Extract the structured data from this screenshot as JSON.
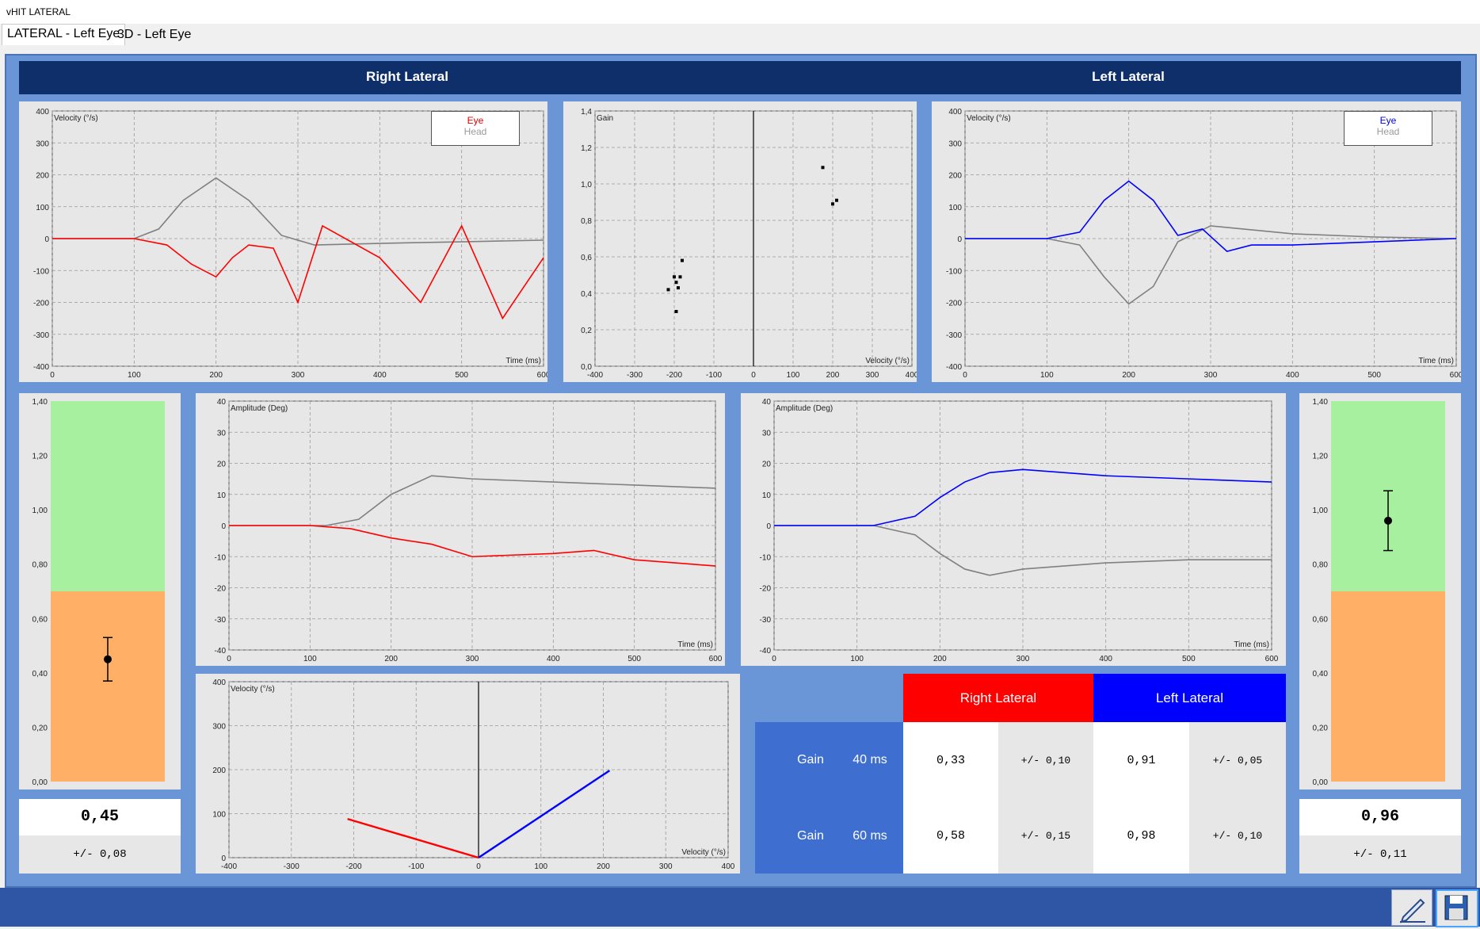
{
  "window": {
    "title": "vHIT LATERAL"
  },
  "tabs": [
    {
      "label": "LATERAL - Left Eye"
    },
    {
      "label": "3D - Left Eye"
    }
  ],
  "headers": {
    "right": "Right Lateral",
    "left": "Left Lateral"
  },
  "colors": {
    "eye_right": "#ff0000",
    "eye_left": "#0000ff",
    "head": "#808080",
    "gauge_green": "#a6f0a0",
    "gauge_orange": "#ffb066",
    "frame_blue": "#6a95d6",
    "header_dark": "#0f2f6b"
  },
  "legends": {
    "right_velocity": {
      "eye": "Eye",
      "head": "Head"
    },
    "left_velocity": {
      "eye": "Eye",
      "head": "Head"
    }
  },
  "chart_data": [
    {
      "type": "line",
      "id": "right_velocity",
      "ylabel": "Velocity (°/s)",
      "xlabel": "Time (ms)",
      "xlim": [
        0,
        600
      ],
      "ylim": [
        -400,
        400
      ],
      "xticks": [
        "0",
        "100",
        "200",
        "300",
        "400",
        "500",
        "600"
      ],
      "yticks": [
        "400",
        "300",
        "200",
        "100",
        "0",
        "-100",
        "-200",
        "-300",
        "-400"
      ],
      "series": [
        {
          "name": "Head",
          "color": "#808080",
          "x": [
            0,
            100,
            130,
            160,
            200,
            240,
            280,
            320,
            400,
            500,
            600
          ],
          "y": [
            0,
            0,
            30,
            120,
            190,
            120,
            10,
            -20,
            -15,
            -10,
            -5
          ]
        },
        {
          "name": "Eye",
          "color": "#ff0000",
          "x": [
            0,
            100,
            140,
            170,
            200,
            220,
            240,
            270,
            300,
            330,
            400,
            450,
            500,
            550,
            600
          ],
          "y": [
            0,
            0,
            -20,
            -80,
            -120,
            -60,
            -20,
            -30,
            -200,
            40,
            -60,
            -200,
            40,
            -250,
            -60
          ]
        }
      ]
    },
    {
      "type": "scatter",
      "id": "gain_velocity",
      "ylabel": "Gain",
      "xlabel": "Velocity (°/s)",
      "xlim": [
        -400,
        400
      ],
      "ylim": [
        0,
        1.4
      ],
      "xticks": [
        "-400",
        "-300",
        "-200",
        "-100",
        "0",
        "100",
        "200",
        "300",
        "400"
      ],
      "yticks": [
        "1,4",
        "1,2",
        "1,0",
        "0,8",
        "0,6",
        "0,4",
        "0,2",
        "0,0"
      ],
      "points": [
        [
          -180,
          0.58
        ],
        [
          -200,
          0.49
        ],
        [
          -195,
          0.46
        ],
        [
          -185,
          0.49
        ],
        [
          -190,
          0.43
        ],
        [
          -215,
          0.42
        ],
        [
          -195,
          0.3
        ],
        [
          175,
          1.09
        ],
        [
          200,
          0.89
        ],
        [
          210,
          0.91
        ]
      ]
    },
    {
      "type": "line",
      "id": "left_velocity",
      "ylabel": "Velocity (°/s)",
      "xlabel": "Time (ms)",
      "xlim": [
        0,
        600
      ],
      "ylim": [
        -400,
        400
      ],
      "xticks": [
        "0",
        "100",
        "200",
        "300",
        "400",
        "500",
        "600"
      ],
      "yticks": [
        "400",
        "300",
        "200",
        "100",
        "0",
        "-100",
        "-200",
        "-300",
        "-400"
      ],
      "series": [
        {
          "name": "Head",
          "color": "#808080",
          "x": [
            0,
            100,
            140,
            170,
            200,
            230,
            260,
            300,
            400,
            500,
            600
          ],
          "y": [
            0,
            0,
            -20,
            -120,
            -205,
            -150,
            -10,
            40,
            15,
            5,
            0
          ]
        },
        {
          "name": "Eye",
          "color": "#0000ff",
          "x": [
            0,
            100,
            140,
            170,
            200,
            230,
            260,
            290,
            320,
            350,
            400,
            500,
            600
          ],
          "y": [
            0,
            0,
            20,
            120,
            180,
            120,
            10,
            30,
            -40,
            -20,
            -20,
            -10,
            0
          ]
        }
      ]
    },
    {
      "type": "line",
      "id": "right_amplitude",
      "ylabel": "Amplitude (Deg)",
      "xlabel": "Time (ms)",
      "xlim": [
        0,
        600
      ],
      "ylim": [
        -40,
        40
      ],
      "xticks": [
        "0",
        "100",
        "200",
        "300",
        "400",
        "500",
        "600"
      ],
      "yticks": [
        "40",
        "30",
        "20",
        "10",
        "0",
        "-10",
        "-20",
        "-30",
        "-40"
      ],
      "series": [
        {
          "name": "Head",
          "color": "#808080",
          "x": [
            0,
            120,
            160,
            200,
            250,
            300,
            400,
            500,
            600
          ],
          "y": [
            0,
            0,
            2,
            10,
            16,
            15,
            14,
            13,
            12
          ]
        },
        {
          "name": "Eye",
          "color": "#ff0000",
          "x": [
            0,
            100,
            150,
            200,
            250,
            300,
            400,
            450,
            500,
            550,
            600
          ],
          "y": [
            0,
            0,
            -1,
            -4,
            -6,
            -10,
            -9,
            -8,
            -11,
            -12,
            -13
          ]
        }
      ]
    },
    {
      "type": "line",
      "id": "left_amplitude",
      "ylabel": "Amplitude (Deg)",
      "xlabel": "Time (ms)",
      "xlim": [
        0,
        600
      ],
      "ylim": [
        -40,
        40
      ],
      "xticks": [
        "0",
        "100",
        "200",
        "300",
        "400",
        "500",
        "600"
      ],
      "yticks": [
        "40",
        "30",
        "20",
        "10",
        "0",
        "-10",
        "-20",
        "-30",
        "-40"
      ],
      "series": [
        {
          "name": "Head",
          "color": "#808080",
          "x": [
            0,
            120,
            170,
            200,
            230,
            260,
            300,
            400,
            500,
            600
          ],
          "y": [
            0,
            0,
            -3,
            -9,
            -14,
            -16,
            -14,
            -12,
            -11,
            -11
          ]
        },
        {
          "name": "Eye",
          "color": "#0000ff",
          "x": [
            0,
            120,
            170,
            200,
            230,
            260,
            300,
            400,
            500,
            600
          ],
          "y": [
            0,
            0,
            3,
            9,
            14,
            17,
            18,
            16,
            15,
            14
          ]
        }
      ]
    },
    {
      "type": "scatter",
      "id": "velocity_regression",
      "ylabel": "Velocity (°/s)",
      "xlabel": "Velocity (°/s)",
      "xlim": [
        -400,
        400
      ],
      "ylim": [
        0,
        400
      ],
      "xticks": [
        "-400",
        "-300",
        "-200",
        "-100",
        "0",
        "100",
        "200",
        "300",
        "400"
      ],
      "yticks": [
        "400",
        "300",
        "200",
        "100",
        "0"
      ],
      "lines": [
        {
          "name": "Right",
          "color": "#ff0000",
          "x": [
            -210,
            0
          ],
          "y": [
            88,
            0
          ]
        },
        {
          "name": "Left",
          "color": "#0000ff",
          "x": [
            0,
            210
          ],
          "y": [
            0,
            198
          ]
        }
      ]
    },
    {
      "type": "bar",
      "id": "right_gauge",
      "ylim": [
        0,
        1.4
      ],
      "yticks": [
        "1,40",
        "1,20",
        "1,00",
        "0,80",
        "0,60",
        "0,40",
        "0,20",
        "0,00"
      ],
      "value": 0.45,
      "err": 0.08
    },
    {
      "type": "bar",
      "id": "left_gauge",
      "ylim": [
        0,
        1.4
      ],
      "yticks": [
        "1,40",
        "1,20",
        "1,00",
        "0,80",
        "0,60",
        "0,40",
        "0,20",
        "0,00"
      ],
      "value": 0.96,
      "err": 0.11
    }
  ],
  "gauges": {
    "right": {
      "value": "0,45",
      "sd": "+/- 0,08"
    },
    "left": {
      "value": "0,96",
      "sd": "+/- 0,11"
    }
  },
  "gain_table": {
    "col_right": "Right Lateral",
    "col_left": "Left Lateral",
    "rows": [
      {
        "label": "Gain",
        "ms": "40 ms",
        "right": "0,33",
        "right_sd": "+/- 0,10",
        "left": "0,91",
        "left_sd": "+/- 0,05"
      },
      {
        "label": "Gain",
        "ms": "60 ms",
        "right": "0,58",
        "right_sd": "+/- 0,15",
        "left": "0,98",
        "left_sd": "+/- 0,10"
      }
    ]
  },
  "toolbar": {
    "edit_icon": "edit-icon",
    "save_icon": "save-icon"
  }
}
